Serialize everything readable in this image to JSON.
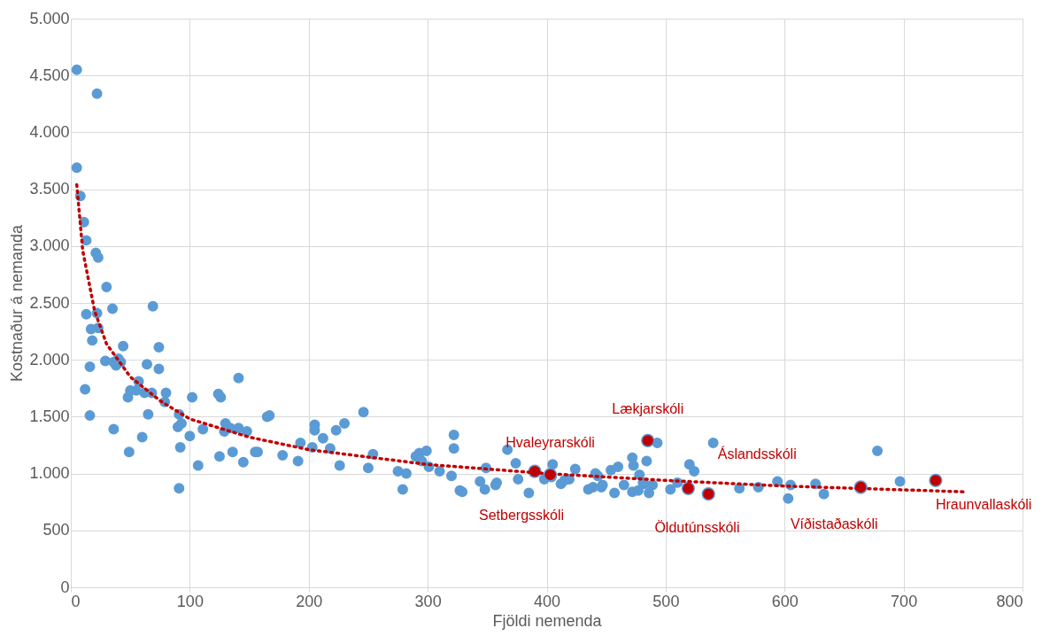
{
  "chart_data": {
    "type": "scatter",
    "xlabel": "Fjöldi nemenda",
    "ylabel": "Kostnaður á nemanda",
    "xlim": [
      0,
      800
    ],
    "xticks": [
      0,
      100,
      200,
      300,
      400,
      500,
      600,
      700,
      800
    ],
    "ylim": [
      0,
      5000
    ],
    "yticks": [
      0,
      {
        "value": 500,
        "label": "500"
      },
      {
        "value": 1000,
        "label": "1.000"
      },
      {
        "value": 1500,
        "label": "1.500"
      },
      {
        "value": 2000,
        "label": "2.000"
      },
      {
        "value": 2500,
        "label": "2.500"
      },
      {
        "value": 3000,
        "label": "3.000"
      },
      {
        "value": 3500,
        "label": "3.500"
      },
      {
        "value": 4000,
        "label": "4.000"
      },
      {
        "value": 4500,
        "label": "4.500"
      },
      {
        "value": 5000,
        "label": "5.000"
      }
    ],
    "grid": true,
    "marker": "circle",
    "series": [
      {
        "color": "#5b9bd5",
        "x": [
          5,
          22,
          5,
          8,
          11,
          13,
          21,
          23,
          30,
          13,
          22,
          35,
          69,
          17,
          23,
          18,
          74,
          44,
          29,
          36,
          40,
          38,
          16,
          74,
          42,
          141,
          12,
          16,
          36,
          48,
          50,
          55,
          57,
          68,
          80,
          64,
          62,
          79,
          65,
          60,
          49,
          91,
          90,
          91,
          93,
          92,
          100,
          102,
          107,
          111,
          124,
          126,
          125,
          129,
          130,
          134,
          136,
          141,
          145,
          148,
          155,
          157,
          165,
          167,
          178,
          191,
          193,
          203,
          205,
          205,
          212,
          218,
          223,
          226,
          230,
          246,
          250,
          254,
          275,
          279,
          282,
          290,
          293,
          295,
          299,
          301,
          310,
          320,
          322,
          322,
          327,
          329,
          344,
          348,
          349,
          357,
          358,
          367,
          374,
          376,
          385,
          405,
          398,
          404,
          412,
          415,
          419,
          424,
          435,
          439,
          441,
          443,
          446,
          447,
          454,
          457,
          460,
          465,
          472,
          473,
          472,
          477,
          478,
          481,
          482,
          484,
          486,
          489,
          493,
          504,
          510,
          520,
          524,
          540,
          562,
          578,
          594,
          603,
          605,
          626,
          633,
          678,
          697
        ],
        "values": [
          4550,
          4340,
          3690,
          3440,
          3210,
          3050,
          2940,
          2900,
          2640,
          2400,
          2410,
          2450,
          2470,
          2270,
          2280,
          2170,
          2110,
          2120,
          1990,
          1980,
          2010,
          1950,
          1940,
          1920,
          1980,
          1840,
          1740,
          1510,
          1390,
          1670,
          1730,
          1730,
          1810,
          1710,
          1710,
          1960,
          1710,
          1630,
          1520,
          1320,
          1190,
          870,
          1410,
          1520,
          1440,
          1230,
          1330,
          1670,
          1070,
          1390,
          1700,
          1670,
          1150,
          1370,
          1440,
          1400,
          1190,
          1400,
          1100,
          1370,
          1190,
          1190,
          1500,
          1510,
          1160,
          1110,
          1270,
          1230,
          1380,
          1430,
          1310,
          1220,
          1380,
          1070,
          1440,
          1540,
          1050,
          1170,
          1020,
          860,
          1000,
          1150,
          1180,
          1110,
          1200,
          1060,
          1020,
          980,
          1340,
          1220,
          850,
          840,
          930,
          860,
          1050,
          900,
          920,
          1210,
          1090,
          950,
          830,
          1080,
          950,
          970,
          910,
          940,
          950,
          1040,
          860,
          880,
          1000,
          980,
          880,
          900,
          1030,
          830,
          1060,
          900,
          1140,
          1070,
          840,
          850,
          990,
          920,
          910,
          1110,
          830,
          900,
          1270,
          860,
          920,
          1080,
          1020,
          1270,
          870,
          880,
          930,
          780,
          900,
          910,
          820,
          1200,
          930
        ]
      },
      {
        "color": "#c00000",
        "x": [
          390,
          403,
          485,
          519,
          536,
          664,
          727
        ],
        "values": [
          1020,
          990,
          1290,
          870,
          820,
          880,
          940
        ]
      },
      {
        "type": "line",
        "color": "#c00000",
        "line_style": "dotted",
        "marker": "none",
        "x": [
          5,
          10,
          20,
          30,
          50,
          75,
          100,
          150,
          200,
          300,
          400,
          500,
          600,
          750
        ],
        "values": [
          3540,
          2960,
          2430,
          2140,
          1850,
          1640,
          1480,
          1320,
          1210,
          1080,
          1000,
          940,
          890,
          840
        ]
      }
    ],
    "annotations": [
      {
        "text": "Setbergsskóli",
        "x": 390,
        "y": 1020
      },
      {
        "text": "Hvaleyrarskóli",
        "x": 403,
        "y": 990
      },
      {
        "text": "Lækjarskóli",
        "x": 485,
        "y": 1290
      },
      {
        "text": "Öldutúnsskóli",
        "x": 519,
        "y": 870
      },
      {
        "text": "Áslandsskóli",
        "x": 536,
        "y": 820
      },
      {
        "text": "Víðistaðaskóli",
        "x": 664,
        "y": 880
      },
      {
        "text": "Hraunvallaskóli",
        "x": 727,
        "y": 940
      }
    ]
  }
}
